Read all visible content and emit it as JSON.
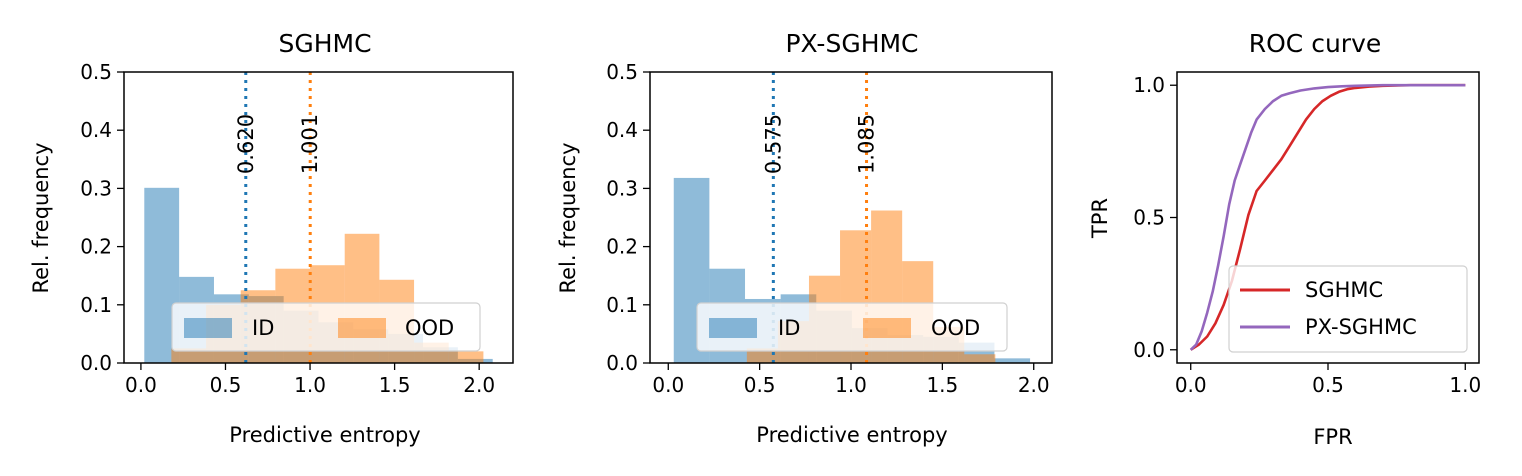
{
  "colors": {
    "id": "#1f77b4",
    "ood": "#ff7f0e",
    "sghmc": "#d62728",
    "pxsghmc": "#9467bd"
  },
  "chart_data": [
    {
      "type": "bar",
      "title": "SGHMC",
      "title_color": "#d62728",
      "xlabel": "Predictive entropy",
      "ylabel": "Rel. frequency",
      "xlim": [
        -0.1,
        2.2
      ],
      "ylim": [
        0,
        0.5
      ],
      "xticks": [
        "0.0",
        "0.5",
        "1.0",
        "1.5",
        "2.0"
      ],
      "xtick_values": [
        0,
        0.5,
        1.0,
        1.5,
        2.0
      ],
      "yticks": [
        "0.0",
        "0.1",
        "0.2",
        "0.3",
        "0.4",
        "0.5"
      ],
      "ytick_values": [
        0,
        0.1,
        0.2,
        0.3,
        0.4,
        0.5
      ],
      "legend": {
        "placement": "lower-center",
        "entries": [
          "ID",
          "OOD"
        ]
      },
      "series": [
        {
          "name": "ID",
          "bin_edges": [
            0.02,
            0.226,
            0.432,
            0.638,
            0.844,
            1.05,
            1.256,
            1.462,
            1.668,
            1.874,
            2.08
          ],
          "values": [
            0.301,
            0.148,
            0.118,
            0.115,
            0.09,
            0.07,
            0.058,
            0.05,
            0.027,
            0.007
          ]
        },
        {
          "name": "OOD",
          "bin_edges": [
            0.18,
            0.385,
            0.59,
            0.795,
            1.0,
            1.205,
            1.41,
            1.615,
            1.82,
            2.025
          ],
          "values": [
            0.025,
            0.1,
            0.125,
            0.162,
            0.168,
            0.222,
            0.143,
            0.035,
            0.02
          ]
        }
      ],
      "vlines": [
        {
          "x": 0.62,
          "label": "0.620",
          "series": "ID"
        },
        {
          "x": 1.001,
          "label": "1.001",
          "series": "OOD"
        }
      ]
    },
    {
      "type": "bar",
      "title": "PX-SGHMC",
      "title_color": "#9467bd",
      "xlabel": "Predictive entropy",
      "ylabel": "Rel. frequency",
      "xlim": [
        -0.1,
        2.1
      ],
      "ylim": [
        0,
        0.5
      ],
      "xticks": [
        "0.0",
        "0.5",
        "1.0",
        "1.5",
        "2.0"
      ],
      "xtick_values": [
        0,
        0.5,
        1.0,
        1.5,
        2.0
      ],
      "yticks": [
        "0.0",
        "0.1",
        "0.2",
        "0.3",
        "0.4",
        "0.5"
      ],
      "ytick_values": [
        0,
        0.1,
        0.2,
        0.3,
        0.4,
        0.5
      ],
      "legend": {
        "placement": "lower-center",
        "entries": [
          "ID",
          "OOD"
        ]
      },
      "series": [
        {
          "name": "ID",
          "bin_edges": [
            0.03,
            0.225,
            0.42,
            0.615,
            0.81,
            1.005,
            1.2,
            1.395,
            1.59,
            1.785,
            1.98
          ],
          "values": [
            0.318,
            0.162,
            0.11,
            0.118,
            0.09,
            0.06,
            0.048,
            0.045,
            0.035,
            0.008
          ]
        },
        {
          "name": "OOD",
          "bin_edges": [
            0.43,
            0.6,
            0.77,
            0.94,
            1.11,
            1.28,
            1.45,
            1.62,
            1.79
          ],
          "values": [
            0.025,
            0.072,
            0.15,
            0.228,
            0.262,
            0.175,
            0.062,
            0.015
          ]
        }
      ],
      "vlines": [
        {
          "x": 0.575,
          "label": "0.575",
          "series": "ID"
        },
        {
          "x": 1.085,
          "label": "1.085",
          "series": "OOD"
        }
      ]
    },
    {
      "type": "line",
      "title": "ROC curve",
      "xlabel": "FPR",
      "ylabel": "TPR",
      "xlim": [
        -0.05,
        1.05
      ],
      "ylim": [
        -0.05,
        1.05
      ],
      "xticks": [
        "0.0",
        "0.5",
        "1.0"
      ],
      "xtick_values": [
        0,
        0.5,
        1.0
      ],
      "yticks": [
        "0.0",
        "0.5",
        "1.0"
      ],
      "ytick_values": [
        0,
        0.5,
        1.0
      ],
      "legend": {
        "placement": "lower-right",
        "entries": [
          "SGHMC",
          "PX-SGHMC"
        ]
      },
      "series": [
        {
          "name": "SGHMC",
          "color": "#d62728",
          "x": [
            0,
            0.03,
            0.06,
            0.09,
            0.12,
            0.15,
            0.18,
            0.21,
            0.24,
            0.27,
            0.3,
            0.33,
            0.36,
            0.39,
            0.42,
            0.45,
            0.48,
            0.51,
            0.54,
            0.57,
            0.6,
            0.65,
            0.7,
            0.8,
            1.0
          ],
          "y": [
            0,
            0.02,
            0.05,
            0.1,
            0.17,
            0.26,
            0.38,
            0.51,
            0.6,
            0.64,
            0.68,
            0.72,
            0.77,
            0.82,
            0.87,
            0.91,
            0.94,
            0.96,
            0.975,
            0.985,
            0.99,
            0.995,
            0.998,
            1.0,
            1.0
          ]
        },
        {
          "name": "PX-SGHMC",
          "color": "#9467bd",
          "x": [
            0,
            0.02,
            0.04,
            0.06,
            0.08,
            0.1,
            0.12,
            0.14,
            0.16,
            0.18,
            0.2,
            0.22,
            0.24,
            0.27,
            0.3,
            0.33,
            0.36,
            0.4,
            0.45,
            0.5,
            0.55,
            0.6,
            0.7,
            0.85,
            1.0
          ],
          "y": [
            0,
            0.02,
            0.07,
            0.14,
            0.22,
            0.32,
            0.43,
            0.55,
            0.64,
            0.7,
            0.76,
            0.82,
            0.87,
            0.91,
            0.94,
            0.96,
            0.97,
            0.98,
            0.988,
            0.993,
            0.996,
            0.998,
            1.0,
            1.0,
            1.0
          ]
        }
      ]
    }
  ]
}
